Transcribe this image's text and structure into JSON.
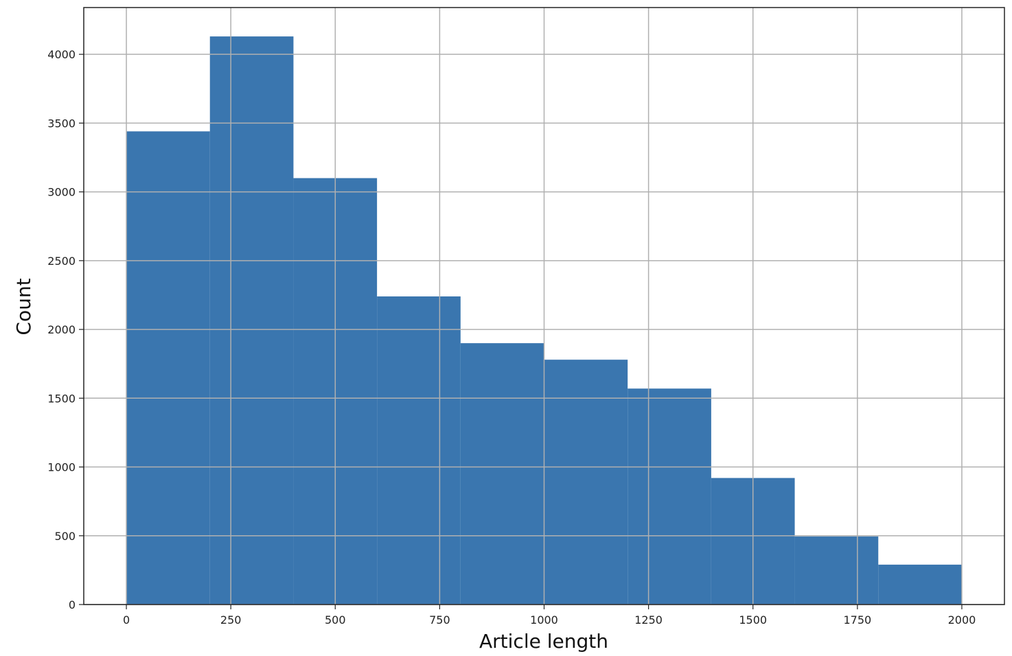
{
  "chart_data": {
    "type": "bar",
    "histogram": true,
    "title": "",
    "xlabel": "Article length",
    "ylabel": "Count",
    "bins": [
      {
        "start": 0,
        "end": 200,
        "value": 3440
      },
      {
        "start": 200,
        "end": 400,
        "value": 4130
      },
      {
        "start": 400,
        "end": 600,
        "value": 3100
      },
      {
        "start": 600,
        "end": 800,
        "value": 2240
      },
      {
        "start": 800,
        "end": 1000,
        "value": 1900
      },
      {
        "start": 1000,
        "end": 1200,
        "value": 1780
      },
      {
        "start": 1200,
        "end": 1400,
        "value": 1570
      },
      {
        "start": 1400,
        "end": 1600,
        "value": 920
      },
      {
        "start": 1600,
        "end": 1800,
        "value": 495
      },
      {
        "start": 1800,
        "end": 2000,
        "value": 290
      }
    ],
    "xlim": [
      -102,
      2102
    ],
    "ylim": [
      0,
      4340
    ],
    "xticks": [
      0,
      250,
      500,
      750,
      1000,
      1250,
      1500,
      1750,
      2000
    ],
    "yticks": [
      0,
      500,
      1000,
      1500,
      2000,
      2500,
      3000,
      3500,
      4000
    ],
    "grid": true,
    "legend": "none",
    "colors": {
      "bar": "#3a76af",
      "grid": "#b0b0b0",
      "axis": "#222222"
    }
  }
}
